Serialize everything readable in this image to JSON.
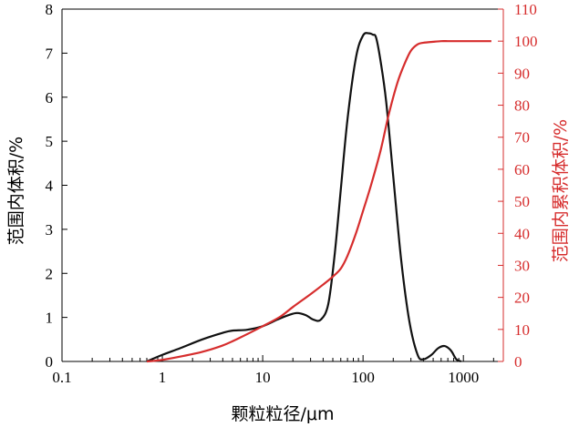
{
  "chart_data": {
    "type": "line",
    "xlabel": "颗粒粒径/μm",
    "ylabel_left": "范围内体积/%",
    "ylabel_right": "范围内累积体积/%",
    "x_scale": "log",
    "xlim": [
      0.1,
      2500
    ],
    "x_ticks": [
      "0.1",
      "1",
      "10",
      "100",
      "1000"
    ],
    "ylim_left": [
      0,
      8
    ],
    "y_ticks_left": [
      "0",
      "1",
      "2",
      "3",
      "4",
      "5",
      "6",
      "7",
      "8"
    ],
    "ylim_right": [
      0,
      110
    ],
    "y_ticks_right": [
      "0",
      "10",
      "20",
      "30",
      "40",
      "50",
      "60",
      "70",
      "80",
      "90",
      "100",
      "110"
    ],
    "colors": {
      "left_series": "#111111",
      "right_series": "#d62d2d",
      "right_axis": "#d62d2d"
    },
    "series": [
      {
        "axis": "left",
        "x": [
          0.7,
          1.0,
          1.5,
          2.5,
          4.0,
          5.0,
          7.0,
          10,
          14,
          18,
          22,
          27,
          32,
          38,
          45,
          52,
          60,
          70,
          85,
          100,
          115,
          125,
          135,
          150,
          170,
          200,
          240,
          290,
          350,
          400,
          480,
          560,
          650,
          750,
          850,
          950
        ],
        "y": [
          0,
          0.15,
          0.3,
          0.5,
          0.65,
          0.7,
          0.72,
          0.8,
          0.95,
          1.05,
          1.1,
          1.05,
          0.95,
          0.95,
          1.3,
          2.4,
          3.9,
          5.5,
          6.9,
          7.4,
          7.45,
          7.42,
          7.35,
          6.8,
          5.9,
          4.2,
          2.3,
          0.9,
          0.15,
          0.05,
          0.15,
          0.3,
          0.35,
          0.25,
          0.05,
          0
        ]
      },
      {
        "axis": "right",
        "x": [
          0.7,
          1.0,
          1.5,
          2.5,
          4.0,
          6.0,
          10,
          15,
          20,
          30,
          40,
          50,
          60,
          70,
          85,
          100,
          120,
          150,
          180,
          220,
          260,
          300,
          350,
          400,
          500,
          600,
          700,
          800,
          1000,
          1500,
          1900
        ],
        "y": [
          0,
          0.5,
          1.5,
          3,
          5,
          7.5,
          11,
          14,
          17,
          21,
          24,
          26.5,
          29,
          33,
          40,
          47,
          55,
          66,
          77,
          87,
          93,
          97,
          99,
          99.5,
          99.8,
          100,
          100,
          100,
          100,
          100,
          100
        ]
      }
    ]
  }
}
